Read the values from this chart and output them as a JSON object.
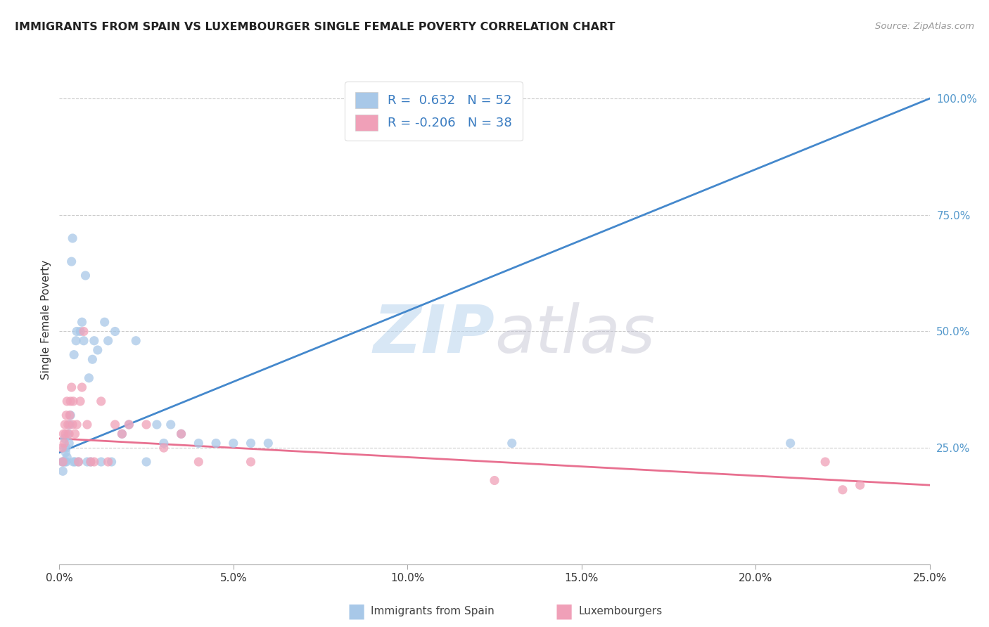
{
  "title": "IMMIGRANTS FROM SPAIN VS LUXEMBOURGER SINGLE FEMALE POVERTY CORRELATION CHART",
  "source": "Source: ZipAtlas.com",
  "ylabel": "Single Female Poverty",
  "xlim": [
    0.0,
    25.0
  ],
  "ylim": [
    0.0,
    105.0
  ],
  "blue_R": 0.632,
  "blue_N": 52,
  "pink_R": -0.206,
  "pink_N": 38,
  "blue_color": "#A8C8E8",
  "pink_color": "#F0A0B8",
  "blue_line_color": "#4488CC",
  "pink_line_color": "#E87090",
  "background": "#FFFFFF",
  "grid_color": "#CCCCCC",
  "right_tick_color": "#5599CC",
  "blue_line_x": [
    0,
    25
  ],
  "blue_line_y": [
    24,
    100
  ],
  "pink_line_x": [
    0,
    25
  ],
  "pink_line_y": [
    27,
    17
  ],
  "blue_scatter_x": [
    0.08,
    0.1,
    0.12,
    0.14,
    0.15,
    0.16,
    0.18,
    0.2,
    0.2,
    0.22,
    0.25,
    0.28,
    0.3,
    0.32,
    0.35,
    0.38,
    0.4,
    0.42,
    0.45,
    0.48,
    0.5,
    0.55,
    0.6,
    0.65,
    0.7,
    0.75,
    0.8,
    0.85,
    0.9,
    0.95,
    1.0,
    1.1,
    1.2,
    1.3,
    1.4,
    1.5,
    1.6,
    1.8,
    2.0,
    2.2,
    2.5,
    2.8,
    3.0,
    3.2,
    3.5,
    4.0,
    4.5,
    5.0,
    5.5,
    6.0,
    13.0,
    21.0
  ],
  "blue_scatter_y": [
    22,
    20,
    22,
    25,
    27,
    22,
    24,
    22,
    25,
    23,
    28,
    26,
    30,
    32,
    65,
    70,
    22,
    45,
    22,
    48,
    50,
    22,
    50,
    52,
    48,
    62,
    22,
    40,
    22,
    44,
    48,
    46,
    22,
    52,
    48,
    22,
    50,
    28,
    30,
    48,
    22,
    30,
    26,
    30,
    28,
    26,
    26,
    26,
    26,
    26,
    26,
    26
  ],
  "pink_scatter_x": [
    0.08,
    0.1,
    0.12,
    0.14,
    0.16,
    0.18,
    0.2,
    0.22,
    0.25,
    0.28,
    0.3,
    0.32,
    0.35,
    0.38,
    0.4,
    0.45,
    0.5,
    0.55,
    0.6,
    0.65,
    0.7,
    0.8,
    0.9,
    1.0,
    1.2,
    1.4,
    1.6,
    1.8,
    2.0,
    2.5,
    3.0,
    3.5,
    4.0,
    5.5,
    12.5,
    22.0,
    22.5,
    23.0
  ],
  "pink_scatter_y": [
    25,
    22,
    28,
    26,
    30,
    28,
    32,
    35,
    30,
    28,
    32,
    35,
    38,
    30,
    35,
    28,
    30,
    22,
    35,
    38,
    50,
    30,
    22,
    22,
    35,
    22,
    30,
    28,
    30,
    30,
    25,
    28,
    22,
    22,
    18,
    22,
    16,
    17
  ]
}
